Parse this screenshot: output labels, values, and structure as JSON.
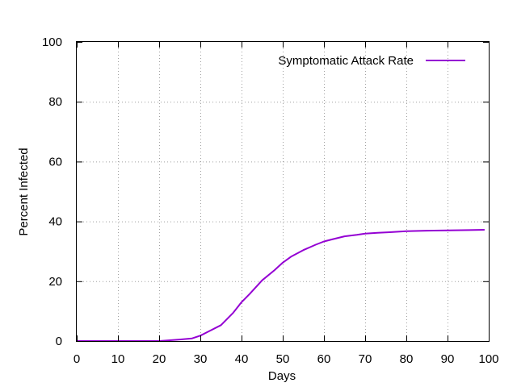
{
  "chart_data": {
    "type": "line",
    "title": "",
    "xlabel": "Days",
    "ylabel": "Percent Infected",
    "xlim": [
      0,
      100
    ],
    "ylim": [
      0,
      100
    ],
    "xticks": [
      0,
      10,
      20,
      30,
      40,
      50,
      60,
      70,
      80,
      90,
      100
    ],
    "yticks": [
      0,
      20,
      40,
      60,
      80,
      100
    ],
    "grid": true,
    "legend_position": "top-right",
    "series": [
      {
        "name": "Symptomatic Attack Rate",
        "color": "#9400d3",
        "x": [
          0,
          5,
          10,
          15,
          20,
          22,
          25,
          28,
          30,
          32,
          35,
          38,
          40,
          42,
          45,
          48,
          50,
          52,
          55,
          58,
          60,
          62,
          65,
          68,
          70,
          73,
          76,
          80,
          85,
          90,
          95,
          99
        ],
        "y": [
          0,
          0,
          0,
          0,
          0,
          0.2,
          0.5,
          0.9,
          1.8,
          3.2,
          5.3,
          9.5,
          13.0,
          15.8,
          20.3,
          23.7,
          26.2,
          28.2,
          30.4,
          32.2,
          33.3,
          34.0,
          35.0,
          35.5,
          35.9,
          36.2,
          36.4,
          36.7,
          36.9,
          37.0,
          37.1,
          37.2
        ]
      }
    ]
  }
}
